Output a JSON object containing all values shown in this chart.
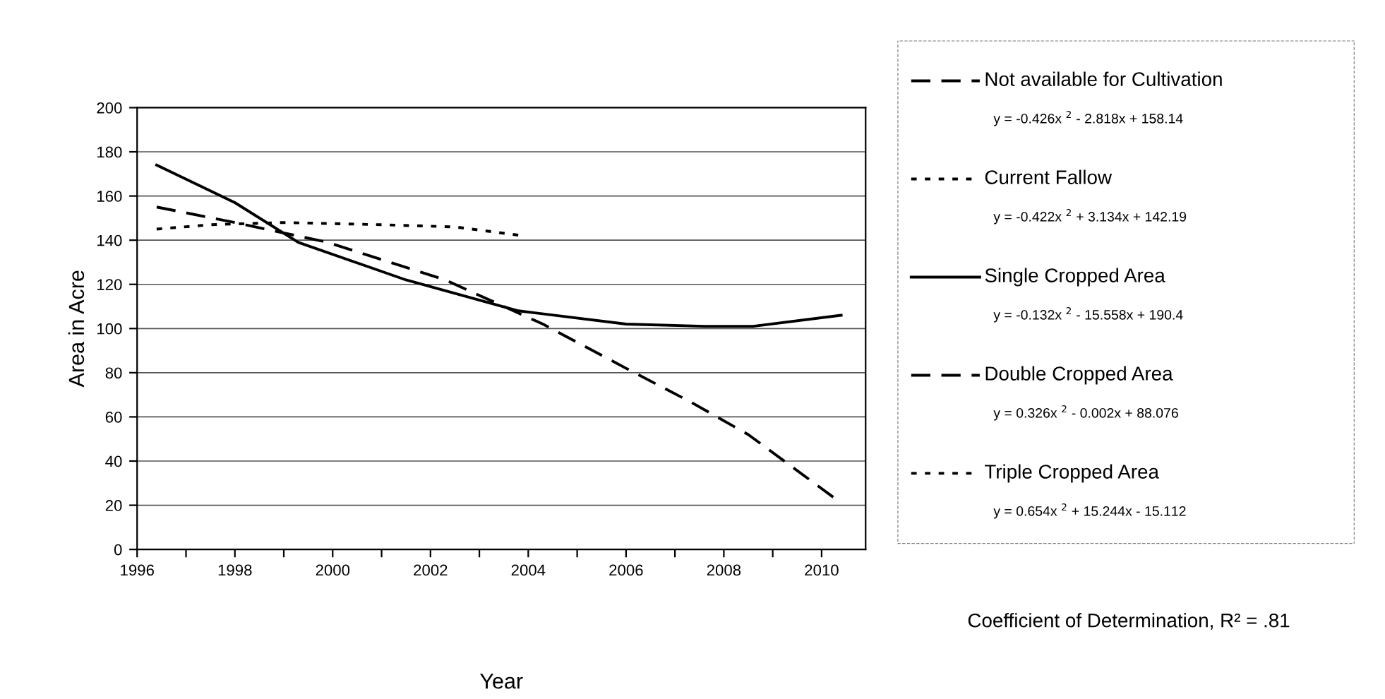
{
  "chart_data": {
    "type": "line",
    "xlabel": "Year",
    "ylabel": "Area in Acre",
    "xlim": [
      1996,
      2010.9
    ],
    "ylim": [
      0,
      200
    ],
    "xticks": [
      1996,
      {
        "value": 1997,
        "label": null
      },
      1998,
      {
        "value": 1999,
        "label": null
      },
      2000,
      {
        "value": 2001,
        "label": null
      },
      2002,
      {
        "value": 2003,
        "label": null
      },
      2004,
      {
        "value": 2005,
        "label": null
      },
      2006,
      {
        "value": 2007,
        "label": null
      },
      2008,
      {
        "value": 2009,
        "label": null
      },
      2010
    ],
    "yticks": [
      0,
      20,
      40,
      60,
      80,
      100,
      120,
      140,
      160,
      180,
      200
    ],
    "grid": "y",
    "legend": "right",
    "series": [
      {
        "name": "Not available for Cultivation",
        "color": "#000000",
        "line_style": "dashed",
        "x": [
          1996.4,
          1998,
          1999.9,
          2002.3,
          2004.3,
          2006,
          2007.3,
          2008.5,
          2010.4
        ],
        "values": [
          155,
          148,
          139,
          122,
          102,
          82,
          67,
          52,
          21
        ]
      },
      {
        "name": "Current Fallow",
        "color": "#000000",
        "line_style": "dotted",
        "x": [
          1996.4,
          1997.5,
          1999,
          2001,
          2002.5,
          2003.9
        ],
        "values": [
          145,
          147,
          148,
          147,
          146,
          142
        ]
      },
      {
        "name": "Single Cropped Area",
        "color": "#000000",
        "line_style": "solid",
        "x": [
          1996.4,
          1998,
          1999.3,
          2001.5,
          2003.8,
          2006,
          2007.6,
          2008.6,
          2010.4
        ],
        "values": [
          174,
          157,
          139,
          122,
          108,
          102,
          101,
          101,
          106
        ]
      },
      {
        "name": "Double Cropped Area",
        "color": "#000000",
        "line_style": "dashed"
      },
      {
        "name": "Triple Cropped Area",
        "color": "#000000",
        "line_style": "dotted"
      }
    ],
    "annotations": [
      "y = -0.426x $^{2}$ - 2.818x + 158.14",
      "y = -0.422x $^{2}$ + 3.134x + 142.19",
      "y = -0.132x $^{2}$ - 15.558x + 190.4",
      "y = 0.326x $^{2}$ - 0.002x + 88.076",
      "y = 0.654x $^{2}$ + 15.244x - 15.112",
      "Coefficient of Determination, R² = .81"
    ]
  }
}
